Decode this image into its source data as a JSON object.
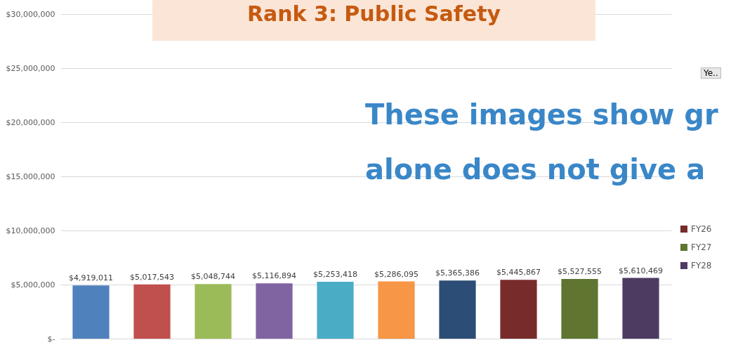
{
  "chart_data": {
    "type": "bar",
    "title": "Rank 3: Public Safety",
    "annotations": [
      "These images show gr",
      "alone does not give a",
      "Ye.."
    ],
    "categories": [
      null,
      null,
      null,
      null,
      null,
      null,
      null,
      null,
      null,
      null
    ],
    "series": [
      {
        "color": "#4f81bd",
        "values": [
          4919011,
          null,
          null,
          null,
          null,
          null,
          null,
          null,
          null,
          null
        ]
      },
      {
        "color": "#c0504d",
        "values": [
          null,
          5017543,
          null,
          null,
          null,
          null,
          null,
          null,
          null,
          null
        ]
      },
      {
        "color": "#9bbb59",
        "values": [
          null,
          null,
          5048744,
          null,
          null,
          null,
          null,
          null,
          null,
          null
        ]
      },
      {
        "color": "#8064a2",
        "values": [
          null,
          null,
          null,
          5116894,
          null,
          null,
          null,
          null,
          null,
          null
        ]
      },
      {
        "color": "#4bacc6",
        "values": [
          null,
          null,
          null,
          null,
          5253418,
          null,
          null,
          null,
          null,
          null
        ]
      },
      {
        "color": "#f79646",
        "values": [
          null,
          null,
          null,
          null,
          null,
          5286095,
          null,
          null,
          null,
          null
        ]
      },
      {
        "color": "#2c4d75",
        "values": [
          null,
          null,
          null,
          null,
          null,
          null,
          5365386,
          null,
          null,
          null
        ]
      },
      {
        "name": "FY26",
        "color": "#772c2a",
        "values": [
          null,
          null,
          null,
          null,
          null,
          null,
          null,
          5445867,
          null,
          null
        ]
      },
      {
        "name": "FY27",
        "color": "#5f7530",
        "values": [
          null,
          null,
          null,
          null,
          null,
          null,
          null,
          null,
          5527555,
          null
        ]
      },
      {
        "name": "FY28",
        "color": "#4d3b62",
        "values": [
          null,
          null,
          null,
          null,
          null,
          null,
          null,
          null,
          null,
          5610469
        ]
      }
    ],
    "value_labels": [
      "$4,919,011",
      "$5,017,543",
      "$5,048,744",
      "$5,116,894",
      "$5,253,418",
      "$5,286,095",
      "$5,365,386",
      "$5,445,867",
      "$5,527,555",
      "$5,610,469"
    ],
    "ylim": [
      0,
      30000000
    ],
    "yticks": [
      {
        "value": 0,
        "label": "$-"
      },
      {
        "value": 5000000,
        "label": "$5,000,000"
      },
      {
        "value": 10000000,
        "label": "$10,000,000"
      },
      {
        "value": 15000000,
        "label": "$15,000,000"
      },
      {
        "value": 20000000,
        "label": "$20,000,000"
      },
      {
        "value": 25000000,
        "label": "$25,000,000"
      },
      {
        "value": 30000000,
        "label": "$30,000,000"
      }
    ],
    "grid": "y",
    "legend": "right"
  }
}
